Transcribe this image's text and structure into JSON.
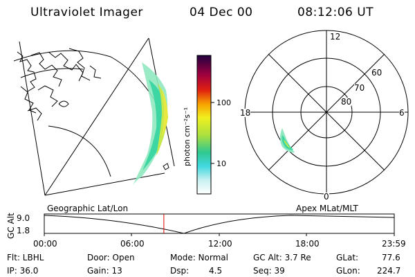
{
  "header": {
    "title": "Ultraviolet Imager",
    "date": "04 Dec 00",
    "time": "08:12:06 UT"
  },
  "colorbar": {
    "label": "photon cm⁻²s⁻¹",
    "ticks": [
      "100",
      "10"
    ]
  },
  "polar": {
    "mlt_labels": [
      "12",
      "18",
      "6",
      "0"
    ],
    "lat_labels": [
      "60",
      "70",
      "80"
    ]
  },
  "altplot": {
    "left_title": "Geographic Lat/Lon",
    "right_title": "Apex  MLat/MLT",
    "ylabel": "GC Alt",
    "yticks": [
      "9.0",
      "1.8"
    ],
    "xticks": [
      "00:00",
      "06:00",
      "12:00",
      "18:00",
      "23:59"
    ],
    "marker_time_hours": 8.2
  },
  "info": {
    "filter": "Flt: LBHL",
    "ip": "IP: 36.0",
    "door": "Door: Open",
    "gain": "Gain: 13",
    "mode": "Mode: Normal",
    "dsp_label": "Dsp:",
    "dsp_value": "4.5",
    "gc_alt": "GC Alt: 3.7 Re",
    "seq": "Seq: 39",
    "glat_label": "GLat:",
    "glat_value": "77.6",
    "glon_label": "GLon:",
    "glon_value": "224.7"
  },
  "colors": {
    "marker": "#dd0000",
    "outline": "#000000"
  }
}
